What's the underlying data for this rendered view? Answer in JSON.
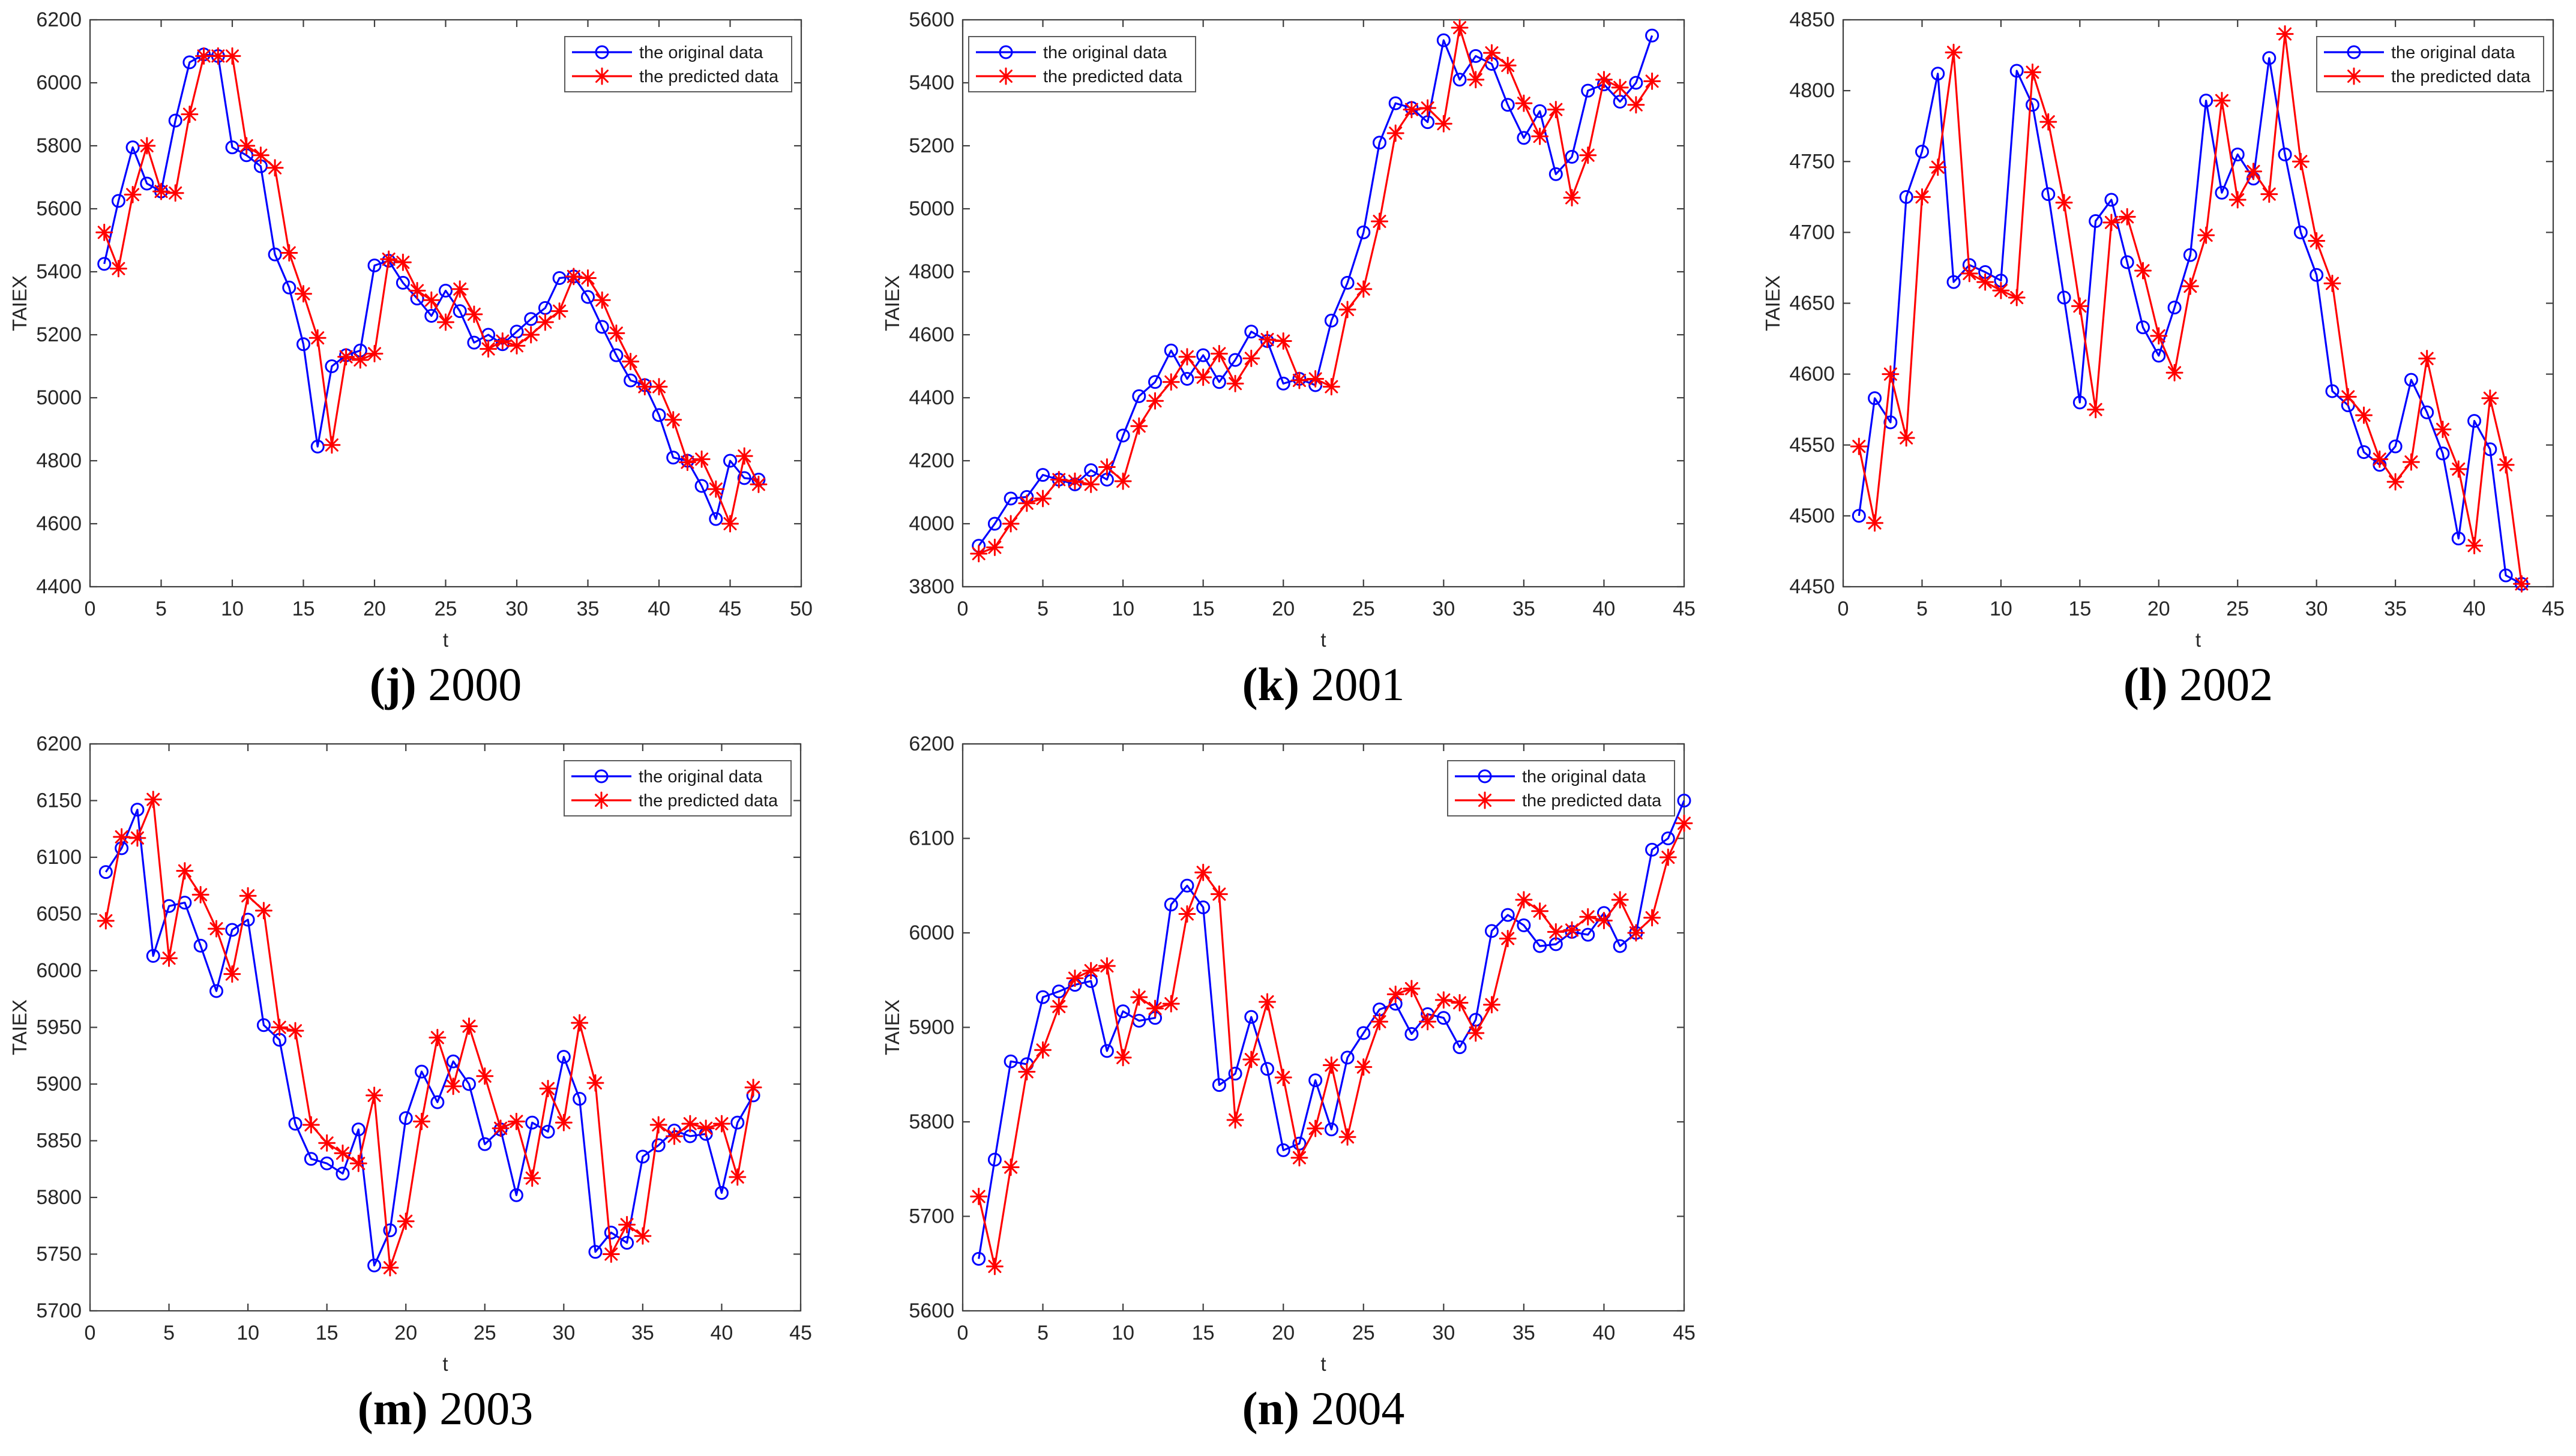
{
  "page": {
    "background": "#ffffff"
  },
  "labels": {
    "x_axis": "t",
    "y_axis": "TAIEX"
  },
  "legend": {
    "items": [
      {
        "key": "original",
        "label": "the original data"
      },
      {
        "key": "predicted",
        "label": "the predicted data"
      }
    ]
  },
  "colors": {
    "original": "#0000ff",
    "predicted": "#ff0000",
    "axis_frame": "#3f3f3f",
    "tick_text": "#262626",
    "legend_border": "#5a5a5a",
    "background": "#ffffff"
  },
  "chart_data": [
    {
      "id": "j",
      "type": "line",
      "caption": {
        "open": "(",
        "letter": "j",
        "close": ") ",
        "year": "2000"
      },
      "xlabel": "t",
      "ylabel": "TAIEX",
      "xlim": [
        0,
        50
      ],
      "ylim": [
        4400,
        6200
      ],
      "xtick_step": 5,
      "ytick_step": 200,
      "grid": false,
      "legend_position": "ne",
      "series": [
        {
          "name": "the original data",
          "key": "original",
          "values": [
            5425,
            5625,
            5795,
            5680,
            5655,
            5880,
            6065,
            6090,
            6085,
            5795,
            5770,
            5735,
            5455,
            5350,
            5170,
            4845,
            5100,
            5135,
            5150,
            5420,
            5435,
            5365,
            5315,
            5260,
            5340,
            5275,
            5175,
            5200,
            5170,
            5210,
            5250,
            5285,
            5380,
            5385,
            5320,
            5225,
            5135,
            5055,
            5040,
            4945,
            4810,
            4800,
            4720,
            4615,
            4800,
            4745,
            4740
          ]
        },
        {
          "name": "the predicted data",
          "key": "predicted",
          "values": [
            5525,
            5410,
            5645,
            5800,
            5655,
            5650,
            5900,
            6085,
            6085,
            6085,
            5800,
            5770,
            5730,
            5460,
            5330,
            5190,
            4850,
            5130,
            5120,
            5140,
            5440,
            5430,
            5340,
            5310,
            5240,
            5345,
            5265,
            5155,
            5180,
            5165,
            5200,
            5240,
            5275,
            5385,
            5380,
            5310,
            5205,
            5115,
            5035,
            5035,
            4930,
            4795,
            4805,
            4710,
            4600,
            4815,
            4725
          ]
        }
      ]
    },
    {
      "id": "k",
      "type": "line",
      "caption": {
        "open": "(",
        "letter": "k",
        "close": ") ",
        "year": "2001"
      },
      "xlabel": "t",
      "ylabel": "TAIEX",
      "xlim": [
        0,
        45
      ],
      "ylim": [
        3800,
        5600
      ],
      "xtick_step": 5,
      "ytick_step": 200,
      "grid": false,
      "legend_position": "nw",
      "series": [
        {
          "name": "the original data",
          "key": "original",
          "values": [
            3930,
            4000,
            4080,
            4085,
            4155,
            4140,
            4125,
            4170,
            4140,
            4280,
            4405,
            4450,
            4550,
            4460,
            4535,
            4450,
            4520,
            4610,
            4580,
            4445,
            4460,
            4440,
            4645,
            4765,
            4925,
            5210,
            5335,
            5320,
            5275,
            5535,
            5410,
            5485,
            5460,
            5330,
            5225,
            5310,
            5110,
            5165,
            5375,
            5395,
            5340,
            5400,
            5550
          ]
        },
        {
          "name": "the predicted data",
          "key": "predicted",
          "values": [
            3905,
            3925,
            4000,
            4065,
            4080,
            4140,
            4135,
            4125,
            4180,
            4135,
            4310,
            4390,
            4450,
            4530,
            4465,
            4540,
            4445,
            4525,
            4585,
            4580,
            4455,
            4460,
            4435,
            4680,
            4745,
            4960,
            5240,
            5315,
            5320,
            5270,
            5575,
            5410,
            5495,
            5455,
            5335,
            5230,
            5315,
            5035,
            5170,
            5410,
            5385,
            5330,
            5405
          ]
        }
      ]
    },
    {
      "id": "l",
      "type": "line",
      "caption": {
        "open": "(",
        "letter": "l",
        "close": ") ",
        "year": "2002"
      },
      "xlabel": "t",
      "ylabel": "TAIEX",
      "xlim": [
        0,
        45
      ],
      "ylim": [
        4450,
        4850
      ],
      "xtick_step": 5,
      "ytick_step": 50,
      "grid": false,
      "legend_position": "ne",
      "series": [
        {
          "name": "the original data",
          "key": "original",
          "values": [
            4500,
            4583,
            4566,
            4725,
            4757,
            4812,
            4665,
            4677,
            4672,
            4666,
            4814,
            4790,
            4727,
            4654,
            4580,
            4708,
            4723,
            4679,
            4633,
            4613,
            4647,
            4684,
            4793,
            4728,
            4755,
            4738,
            4823,
            4755,
            4700,
            4670,
            4588,
            4578,
            4545,
            4536,
            4549,
            4596,
            4573,
            4544,
            4484,
            4567,
            4547,
            4458,
            4452
          ]
        },
        {
          "name": "the predicted data",
          "key": "predicted",
          "values": [
            4549,
            4495,
            4600,
            4555,
            4725,
            4746,
            4827,
            4671,
            4665,
            4659,
            4654,
            4813,
            4778,
            4721,
            4648,
            4575,
            4707,
            4711,
            4673,
            4627,
            4601,
            4662,
            4698,
            4793,
            4723,
            4743,
            4727,
            4840,
            4750,
            4694,
            4664,
            4584,
            4571,
            4540,
            4524,
            4538,
            4611,
            4561,
            4533,
            4479,
            4583,
            4536,
            4452
          ]
        }
      ]
    },
    {
      "id": "m",
      "type": "line",
      "caption": {
        "open": "(",
        "letter": "m",
        "close": ") ",
        "year": "2003"
      },
      "xlabel": "t",
      "ylabel": "TAIEX",
      "xlim": [
        0,
        45
      ],
      "ylim": [
        5700,
        6200
      ],
      "xtick_step": 5,
      "ytick_step": 50,
      "grid": false,
      "legend_position": "ne",
      "series": [
        {
          "name": "the original data",
          "key": "original",
          "values": [
            6087,
            6108,
            6142,
            6013,
            6057,
            6060,
            6022,
            5982,
            6036,
            6045,
            5952,
            5939,
            5865,
            5834,
            5830,
            5821,
            5860,
            5740,
            5771,
            5870,
            5911,
            5884,
            5920,
            5900,
            5847,
            5860,
            5802,
            5866,
            5858,
            5924,
            5887,
            5752,
            5769,
            5760,
            5836,
            5846,
            5859,
            5854,
            5856,
            5804,
            5866,
            5890
          ]
        },
        {
          "name": "the predicted data",
          "key": "predicted",
          "values": [
            6044,
            6118,
            6117,
            6151,
            6011,
            6088,
            6067,
            6037,
            5997,
            6066,
            6053,
            5950,
            5947,
            5864,
            5848,
            5839,
            5830,
            5890,
            5738,
            5779,
            5867,
            5941,
            5898,
            5951,
            5907,
            5861,
            5867,
            5817,
            5896,
            5866,
            5954,
            5901,
            5750,
            5776,
            5766,
            5864,
            5854,
            5865,
            5861,
            5865,
            5818,
            5897
          ]
        }
      ]
    },
    {
      "id": "n",
      "type": "line",
      "caption": {
        "open": "(",
        "letter": "n",
        "close": ") ",
        "year": "2004"
      },
      "xlabel": "t",
      "ylabel": "TAIEX",
      "xlim": [
        0,
        45
      ],
      "ylim": [
        5600,
        6200
      ],
      "xtick_step": 5,
      "ytick_step": 100,
      "grid": false,
      "legend_position": "ne",
      "series": [
        {
          "name": "the original data",
          "key": "original",
          "values": [
            5655,
            5760,
            5864,
            5861,
            5932,
            5938,
            5945,
            5949,
            5875,
            5917,
            5907,
            5910,
            6030,
            6050,
            6027,
            5839,
            5851,
            5911,
            5856,
            5770,
            5777,
            5844,
            5792,
            5868,
            5894,
            5919,
            5925,
            5893,
            5914,
            5910,
            5879,
            5908,
            6002,
            6019,
            6008,
            5986,
            5988,
            6001,
            5998,
            6021,
            5986,
            6000,
            6088,
            6100,
            6140
          ]
        },
        {
          "name": "the predicted data",
          "key": "predicted",
          "values": [
            5721,
            5647,
            5752,
            5853,
            5876,
            5922,
            5952,
            5960,
            5965,
            5868,
            5932,
            5920,
            5925,
            6020,
            6064,
            6041,
            5802,
            5866,
            5927,
            5847,
            5762,
            5793,
            5860,
            5784,
            5858,
            5906,
            5935,
            5941,
            5906,
            5929,
            5926,
            5894,
            5924,
            5994,
            6035,
            6023,
            6001,
            6003,
            6017,
            6013,
            6035,
            6000,
            6016,
            6080,
            6116
          ]
        }
      ]
    }
  ]
}
